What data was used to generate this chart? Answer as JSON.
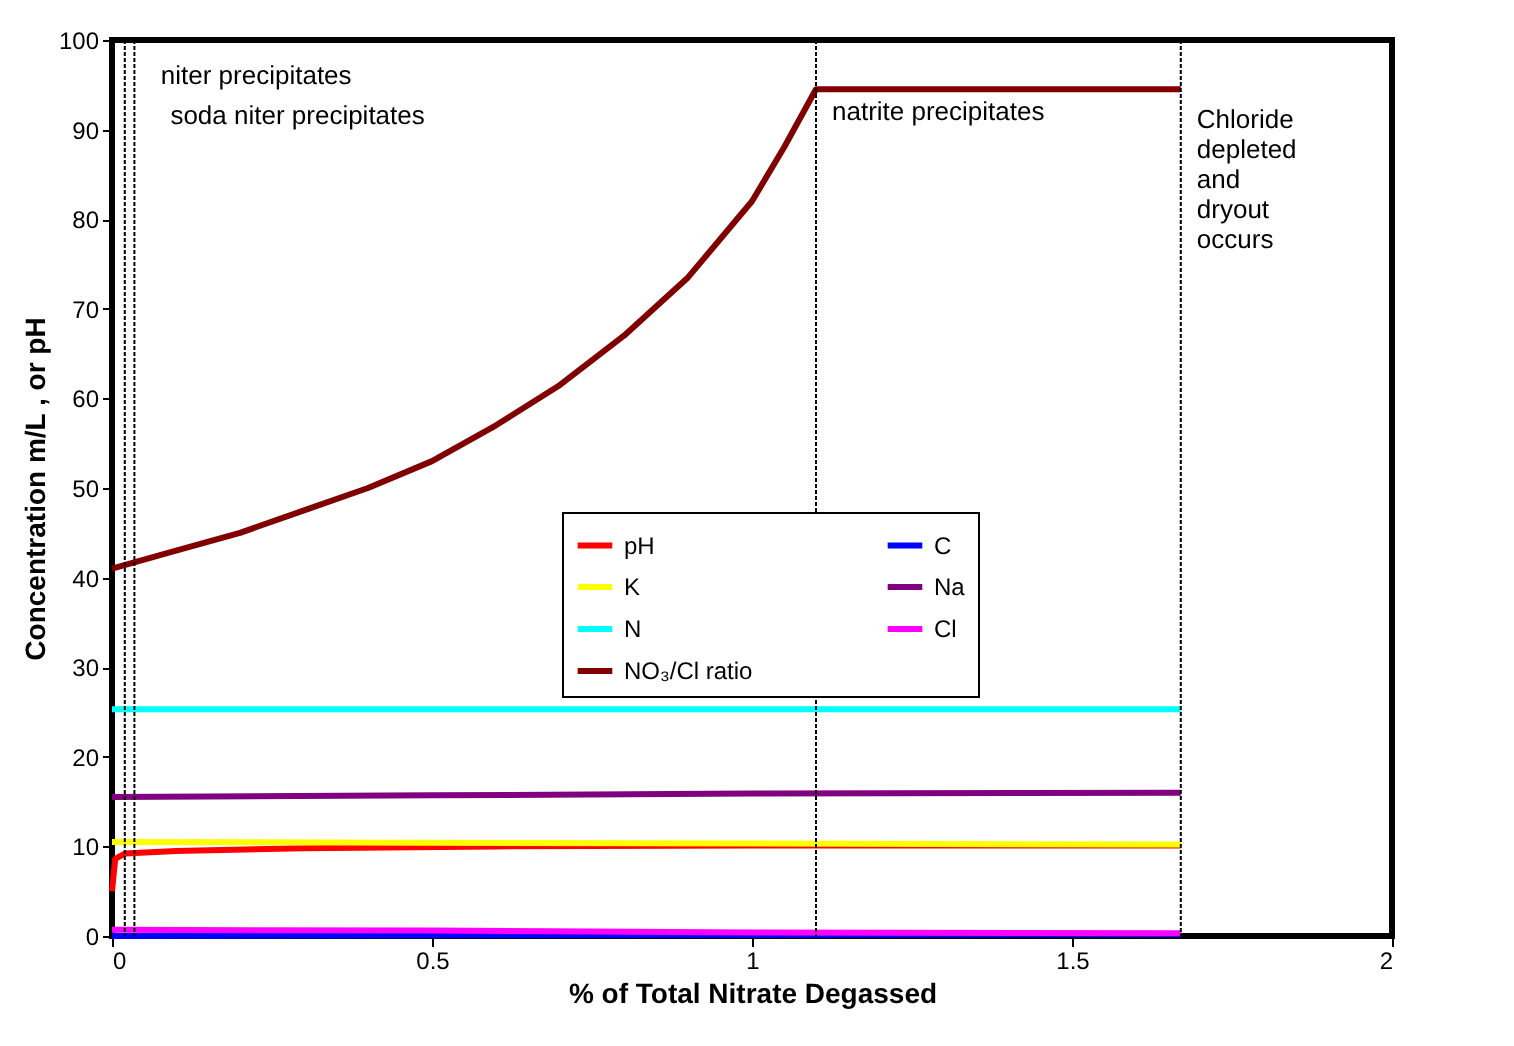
{
  "chart_data": {
    "type": "line",
    "xlabel": "% of Total Nitrate Degassed",
    "ylabel": "Concentration m/L , or pH",
    "xlim": [
      0,
      2
    ],
    "xticks": [
      0,
      0.5,
      1,
      1.5,
      2
    ],
    "ylim": [
      0,
      100
    ],
    "yticks": [
      0,
      10,
      20,
      30,
      40,
      50,
      60,
      70,
      80,
      90,
      100
    ],
    "grid": false,
    "legend": "right",
    "marker": "none",
    "line_style": "solid",
    "series": [
      {
        "name": "pH",
        "color": "#ff0000",
        "x": [
          0,
          0.005,
          0.02,
          0.1,
          0.3,
          0.6,
          1.0,
          1.67
        ],
        "values": [
          5,
          8.6,
          9.2,
          9.5,
          9.8,
          10,
          10.1,
          10.1
        ]
      },
      {
        "name": "C",
        "color": "#0000ff",
        "x": [
          0,
          1.67
        ],
        "values": [
          0,
          0.2
        ]
      },
      {
        "name": "K",
        "color": "#ffff00",
        "x": [
          0,
          1.67
        ],
        "values": [
          10.5,
          10.2
        ]
      },
      {
        "name": "Na",
        "color": "#800080",
        "x": [
          0,
          0.5,
          1.0,
          1.67
        ],
        "values": [
          15.5,
          15.7,
          15.9,
          16
        ]
      },
      {
        "name": "N",
        "color": "#00ffff",
        "x": [
          0,
          1.67
        ],
        "values": [
          25.3,
          25.3
        ]
      },
      {
        "name": "Cl",
        "color": "#ff00ff",
        "x": [
          0,
          0.5,
          1.0,
          1.67
        ],
        "values": [
          0.7,
          0.6,
          0.4,
          0.3
        ]
      },
      {
        "name": "NO₃/Cl ratio",
        "color": "#800000",
        "x": [
          0,
          0.1,
          0.2,
          0.3,
          0.4,
          0.5,
          0.6,
          0.7,
          0.8,
          0.9,
          1.0,
          1.05,
          1.1,
          1.67
        ],
        "values": [
          41,
          43,
          45,
          47.5,
          50,
          53,
          57,
          61.5,
          67,
          73.5,
          82,
          88,
          94.5,
          94.5
        ]
      }
    ],
    "ref_lines": [
      {
        "axis": "x",
        "value": 0.02,
        "label": "niter precipitates",
        "color": "#000000",
        "line_style": "dotted"
      },
      {
        "axis": "x",
        "value": 0.035,
        "label": "soda niter precipitates",
        "color": "#000000",
        "line_style": "dotted"
      },
      {
        "axis": "x",
        "value": 1.1,
        "label": "natrite precipitates",
        "color": "#000000",
        "line_style": "dotted"
      },
      {
        "axis": "x",
        "value": 1.67,
        "label": "Chloride\ndepleted\nand\ndryout\noccurs",
        "color": "#000000",
        "line_style": "dotted"
      }
    ]
  }
}
